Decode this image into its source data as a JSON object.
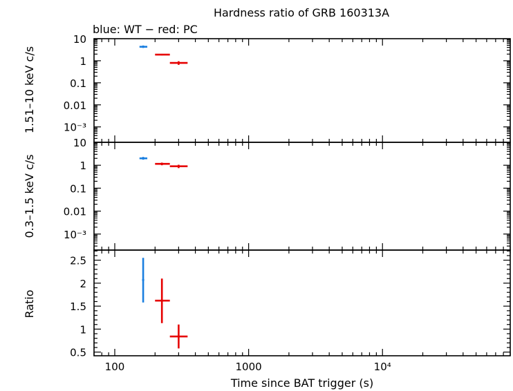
{
  "title": "Hardness ratio of GRB 160313A",
  "subtitle": "blue: WT − red: PC",
  "xlabel": "Time since BAT trigger (s)",
  "colors": {
    "wt": "#1a7fe0",
    "pc": "#e60000"
  },
  "x_ticks": [
    "100",
    "1000",
    "10⁴"
  ],
  "chart_data": [
    {
      "type": "scatter",
      "name": "hard",
      "ylabel": "1.51–10 keV c/s",
      "yscale": "log",
      "ylim": [
        0.0002,
        10
      ],
      "xscale": "log",
      "xlim": [
        70,
        90000
      ],
      "y_ticks": [
        "10",
        "1",
        "0.1",
        "0.01",
        "10⁻³"
      ],
      "series": [
        {
          "mode": "WT",
          "points": [
            {
              "x": 163,
              "xerr": [
                153,
                175
              ],
              "y": 4.3,
              "yerr": [
                3.8,
                4.9
              ]
            }
          ]
        },
        {
          "mode": "PC",
          "points": [
            {
              "x": 225,
              "xerr": [
                200,
                258
              ],
              "y": 1.9,
              "yerr": [
                1.75,
                2.05
              ]
            },
            {
              "x": 300,
              "xerr": [
                258,
                350
              ],
              "y": 0.8,
              "yerr": [
                0.65,
                0.95
              ]
            }
          ]
        }
      ]
    },
    {
      "type": "scatter",
      "name": "soft",
      "ylabel": "0.3–1.5 keV c/s",
      "yscale": "log",
      "ylim": [
        0.0002,
        10
      ],
      "xscale": "log",
      "xlim": [
        70,
        90000
      ],
      "y_ticks": [
        "10",
        "1",
        "0.1",
        "0.01",
        "10⁻³"
      ],
      "series": [
        {
          "mode": "WT",
          "points": [
            {
              "x": 163,
              "xerr": [
                153,
                175
              ],
              "y": 2.0,
              "yerr": [
                1.75,
                2.3
              ]
            }
          ]
        },
        {
          "mode": "PC",
          "points": [
            {
              "x": 225,
              "xerr": [
                200,
                258
              ],
              "y": 1.15,
              "yerr": [
                1.0,
                1.3
              ]
            },
            {
              "x": 300,
              "xerr": [
                258,
                350
              ],
              "y": 0.9,
              "yerr": [
                0.75,
                1.05
              ]
            }
          ]
        }
      ]
    },
    {
      "type": "scatter",
      "name": "ratio",
      "ylabel": "Ratio",
      "yscale": "linear",
      "ylim": [
        0.42,
        2.72
      ],
      "xscale": "log",
      "xlim": [
        70,
        90000
      ],
      "y_ticks": [
        "2.5",
        "2",
        "1.5",
        "1",
        "0.5"
      ],
      "series": [
        {
          "mode": "WT",
          "points": [
            {
              "x": 163,
              "xerr": [
                160,
                166
              ],
              "y": 2.07,
              "yerr": [
                1.58,
                2.55
              ]
            }
          ]
        },
        {
          "mode": "PC",
          "points": [
            {
              "x": 225,
              "xerr": [
                200,
                258
              ],
              "y": 1.62,
              "yerr": [
                1.13,
                2.1
              ]
            },
            {
              "x": 300,
              "xerr": [
                258,
                350
              ],
              "y": 0.84,
              "yerr": [
                0.58,
                1.1
              ]
            }
          ]
        }
      ]
    }
  ]
}
